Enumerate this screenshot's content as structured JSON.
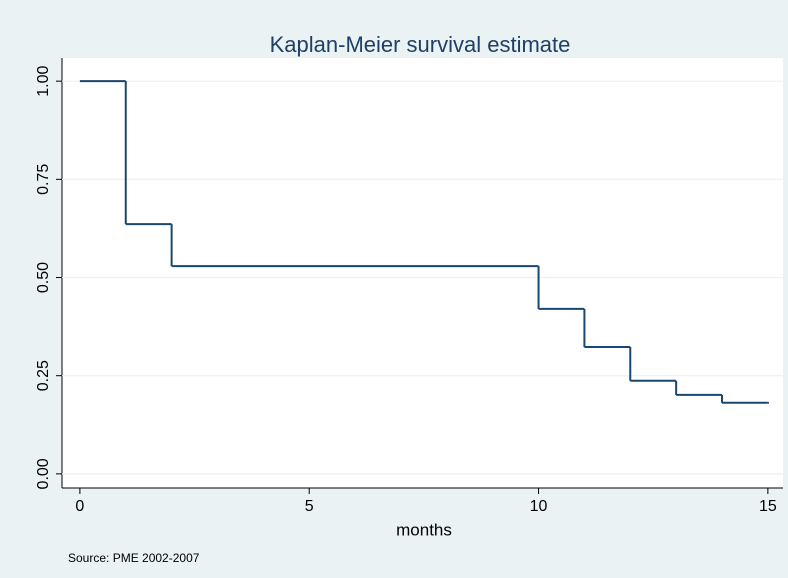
{
  "chart_data": {
    "type": "step",
    "title": "Kaplan-Meier survival estimate",
    "x_label": "months",
    "note": "Source: PME 2002-2007",
    "x": [
      0,
      1,
      2,
      10,
      11,
      12,
      13,
      14,
      15
    ],
    "values": [
      1.0,
      0.636,
      0.529,
      0.42,
      0.323,
      0.237,
      0.201,
      0.181,
      0.181
    ],
    "color": "#1a476f",
    "xlim": [
      -0.39,
      15.33
    ],
    "xticks": [
      0,
      5,
      10,
      15
    ],
    "ylim": [
      -0.036,
      1.059
    ],
    "yticks": [
      {
        "value": 0,
        "label": "0.00"
      },
      {
        "value": 0.25,
        "label": "0.25"
      },
      {
        "value": 0.5,
        "label": "0.50"
      },
      {
        "value": 0.75,
        "label": "0.75"
      },
      {
        "value": 1,
        "label": "1.00"
      }
    ],
    "grid": true
  }
}
